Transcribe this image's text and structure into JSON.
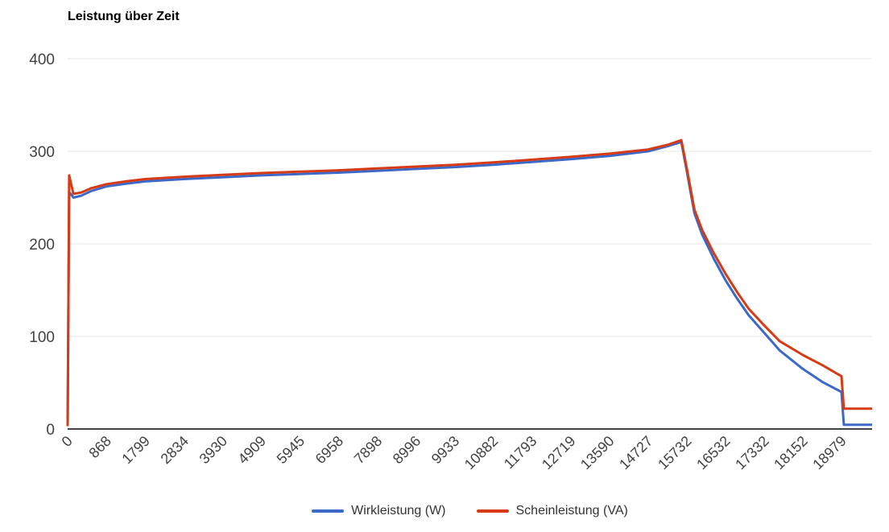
{
  "chart_data": {
    "type": "line",
    "title": "Leistung über Zeit",
    "x_axis": {
      "labels": [
        "0",
        "868",
        "1799",
        "2834",
        "3930",
        "4909",
        "5945",
        "6958",
        "7898",
        "8996",
        "9933",
        "10882",
        "11793",
        "12719",
        "13590",
        "14727",
        "15732",
        "16532",
        "17332",
        "18152",
        "18979"
      ],
      "tick_rotation_deg": -45,
      "extent_intervals": 20.79,
      "note": "categories evenly spaced; data continues slightly past last label"
    },
    "y_axis": {
      "ticks": [
        0,
        100,
        200,
        300,
        400
      ],
      "range": [
        0,
        400
      ]
    },
    "grid": "horizontal-only",
    "legend_position": "bottom-center",
    "series": [
      {
        "name": "Wirkleistung (W)",
        "color": "#3c69c7",
        "points": [
          [
            0,
            3
          ],
          [
            0.04,
            256
          ],
          [
            0.15,
            250
          ],
          [
            0.35,
            252
          ],
          [
            0.6,
            257
          ],
          [
            1,
            262
          ],
          [
            1.5,
            265
          ],
          [
            2,
            267.5
          ],
          [
            3,
            270
          ],
          [
            4,
            272
          ],
          [
            5,
            274
          ],
          [
            6,
            275.5
          ],
          [
            7,
            277
          ],
          [
            8,
            279
          ],
          [
            9,
            281
          ],
          [
            10,
            283
          ],
          [
            11,
            285.5
          ],
          [
            12,
            288.5
          ],
          [
            13,
            291.5
          ],
          [
            14,
            295
          ],
          [
            15,
            300
          ],
          [
            15.5,
            305.5
          ],
          [
            15.86,
            310
          ],
          [
            16,
            279
          ],
          [
            16.2,
            233
          ],
          [
            16.4,
            210
          ],
          [
            16.7,
            184
          ],
          [
            17,
            161
          ],
          [
            17.3,
            141
          ],
          [
            17.6,
            123
          ],
          [
            18,
            104
          ],
          [
            18.4,
            85
          ],
          [
            19,
            65
          ],
          [
            19.5,
            51
          ],
          [
            20,
            40
          ],
          [
            20.06,
            4.5
          ],
          [
            20.79,
            4.5
          ]
        ]
      },
      {
        "name": "Scheinleistung (VA)",
        "color": "#d63b16",
        "points": [
          [
            0,
            3
          ],
          [
            0.04,
            274
          ],
          [
            0.15,
            254
          ],
          [
            0.35,
            255.5
          ],
          [
            0.6,
            260
          ],
          [
            1,
            264.5
          ],
          [
            1.5,
            267.5
          ],
          [
            2,
            270
          ],
          [
            3,
            272.5
          ],
          [
            4,
            274.5
          ],
          [
            5,
            276.5
          ],
          [
            6,
            278
          ],
          [
            7,
            279.5
          ],
          [
            8,
            281.5
          ],
          [
            9,
            283.5
          ],
          [
            10,
            285.5
          ],
          [
            11,
            288
          ],
          [
            12,
            291
          ],
          [
            13,
            294
          ],
          [
            14,
            297.5
          ],
          [
            15,
            302
          ],
          [
            15.5,
            307
          ],
          [
            15.86,
            312
          ],
          [
            16,
            282
          ],
          [
            16.2,
            237
          ],
          [
            16.4,
            215
          ],
          [
            16.7,
            190
          ],
          [
            17,
            168
          ],
          [
            17.3,
            148
          ],
          [
            17.6,
            130
          ],
          [
            18,
            112
          ],
          [
            18.4,
            95
          ],
          [
            19,
            80
          ],
          [
            19.5,
            69
          ],
          [
            20,
            57
          ],
          [
            20.06,
            22
          ],
          [
            20.79,
            22
          ]
        ]
      }
    ]
  },
  "colors": {
    "background": "#ffffff",
    "grid": "#e6e6e6",
    "baseline": "#424242",
    "tick_label": "#424242",
    "legend_text": "#333333",
    "title_text": "#000000"
  }
}
